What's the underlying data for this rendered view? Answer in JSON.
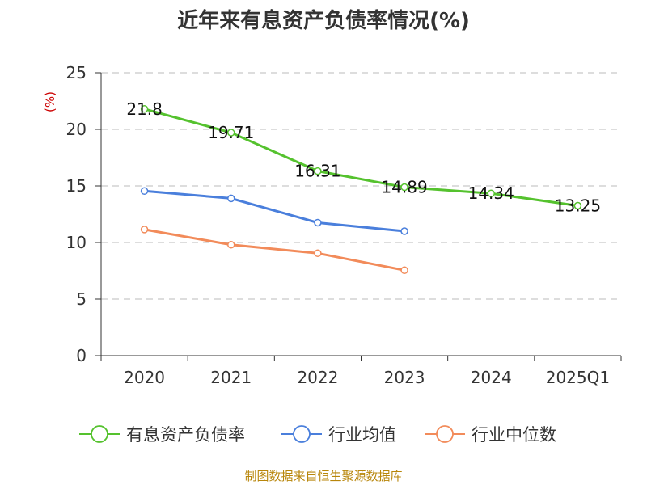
{
  "chart_data": {
    "type": "line",
    "title": "近年来有息资产负债率情况(%)",
    "ylabel": "(%)",
    "xlabel": "",
    "ylim": [
      0,
      25
    ],
    "yticks": [
      0,
      5,
      10,
      15,
      20,
      25
    ],
    "grid": true,
    "legend_position": "bottom",
    "categories": [
      "2020",
      "2021",
      "2022",
      "2023",
      "2024",
      "2025Q1"
    ],
    "series": [
      {
        "name": "有息资产负债率",
        "color": "#55c22e",
        "values": [
          21.8,
          19.71,
          16.31,
          14.89,
          14.34,
          13.25
        ],
        "labels": [
          "21.8",
          "19.71",
          "16.31",
          "14.89",
          "14.34",
          "13.25"
        ]
      },
      {
        "name": "行业均值",
        "color": "#4a7fdc",
        "values": [
          14.55,
          13.9,
          11.75,
          11.0,
          null,
          null
        ]
      },
      {
        "name": "行业中位数",
        "color": "#f28b5a",
        "values": [
          11.15,
          9.8,
          9.05,
          7.55,
          null,
          null
        ]
      }
    ],
    "source": "制图数据来自恒生聚源数据库"
  }
}
